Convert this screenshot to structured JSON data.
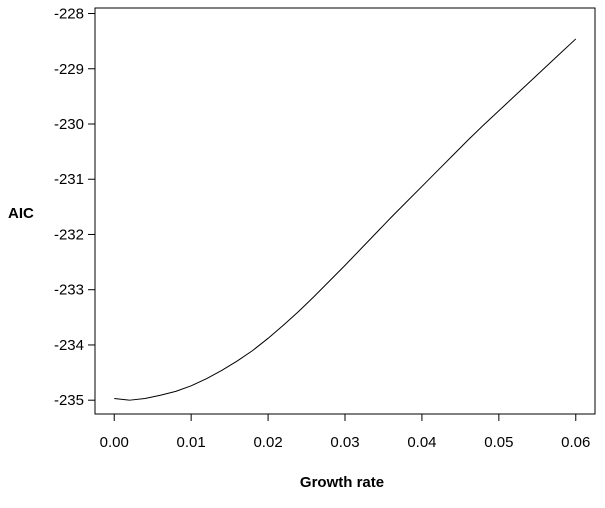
{
  "chart_data": {
    "type": "line",
    "title": "",
    "xlabel": "Growth rate",
    "ylabel": "AIC",
    "xlim": [
      -0.0025,
      0.0625
    ],
    "ylim": [
      -235.25,
      -227.9
    ],
    "x_ticks": [
      0.0,
      0.01,
      0.02,
      0.03,
      0.04,
      0.05,
      0.06
    ],
    "x_tick_labels": [
      "0.00",
      "0.01",
      "0.02",
      "0.03",
      "0.04",
      "0.05",
      "0.06"
    ],
    "y_ticks": [
      -235,
      -234,
      -233,
      -232,
      -231,
      -230,
      -229,
      -228
    ],
    "y_tick_labels": [
      "-235",
      "-234",
      "-233",
      "-232",
      "-231",
      "-230",
      "-229",
      "-228"
    ],
    "grid": false,
    "series": [
      {
        "color": "#000000",
        "x": [
          0.0,
          0.002,
          0.004,
          0.006,
          0.008,
          0.01,
          0.012,
          0.014,
          0.016,
          0.018,
          0.02,
          0.022,
          0.024,
          0.026,
          0.028,
          0.03,
          0.032,
          0.034,
          0.036,
          0.038,
          0.04,
          0.042,
          0.044,
          0.046,
          0.048,
          0.05,
          0.052,
          0.054,
          0.056,
          0.058,
          0.06
        ],
        "values": [
          -234.97,
          -235.0,
          -234.97,
          -234.91,
          -234.84,
          -234.74,
          -234.61,
          -234.46,
          -234.29,
          -234.1,
          -233.88,
          -233.64,
          -233.39,
          -233.12,
          -232.84,
          -232.56,
          -232.27,
          -231.98,
          -231.69,
          -231.41,
          -231.13,
          -230.85,
          -230.57,
          -230.29,
          -230.02,
          -229.76,
          -229.5,
          -229.24,
          -228.98,
          -228.72,
          -228.46
        ]
      }
    ]
  }
}
